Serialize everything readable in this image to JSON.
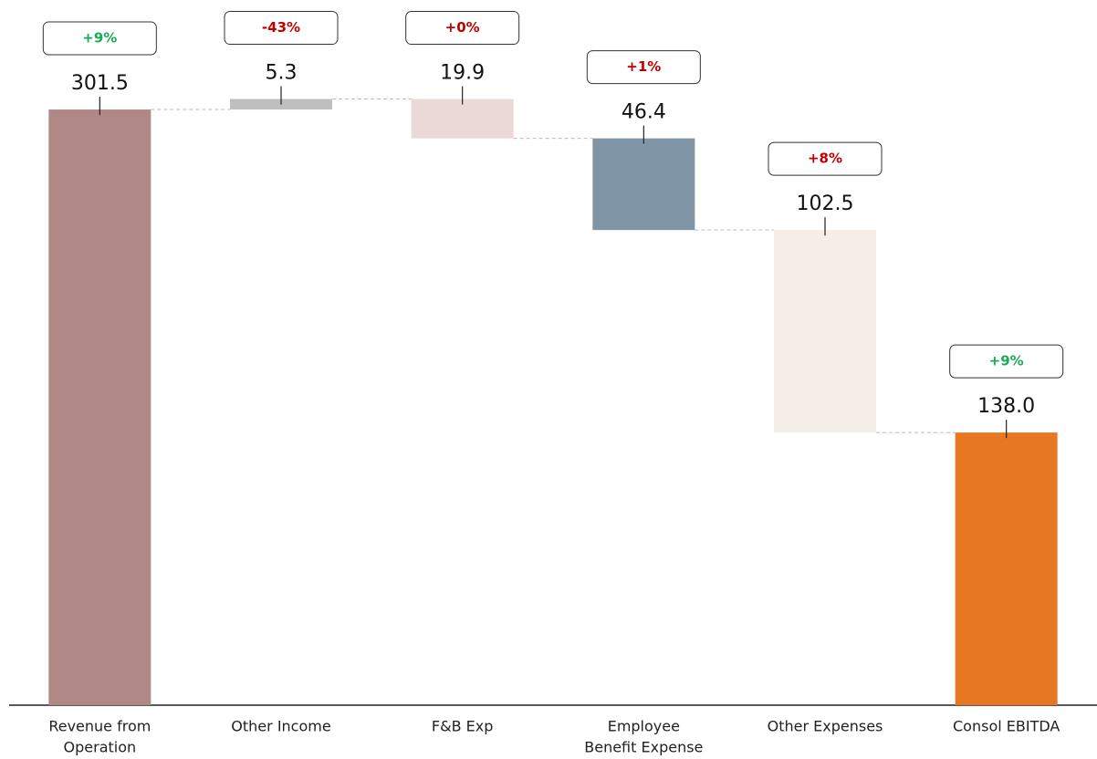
{
  "chart_data": {
    "type": "waterfall",
    "categories": [
      [
        "Revenue from",
        "Operation"
      ],
      [
        "Other Income"
      ],
      [
        "F&B Exp"
      ],
      [
        "Employee",
        "Benefit Expense"
      ],
      [
        "Other Expenses"
      ],
      [
        "Consol EBITDA"
      ]
    ],
    "values": [
      301.5,
      5.3,
      19.9,
      46.4,
      102.5,
      138.0
    ],
    "value_labels": [
      "301.5",
      "5.3",
      "19.9",
      "46.4",
      "102.5",
      "138.0"
    ],
    "measures": [
      "total",
      "increase",
      "decrease",
      "decrease",
      "decrease",
      "total"
    ],
    "colors": [
      "#b08886",
      "#bfbfbf",
      "#ead9d6",
      "#8096a7",
      "#f5ede8",
      "#e87722"
    ],
    "changes": [
      "+9%",
      "-43%",
      "+0%",
      "+1%",
      "+8%",
      "+9%"
    ],
    "change_colors": [
      "#1aaa55",
      "#c00000",
      "#c00000",
      "#c00000",
      "#c00000",
      "#1aaa55"
    ],
    "ylim": [
      0,
      350
    ]
  }
}
